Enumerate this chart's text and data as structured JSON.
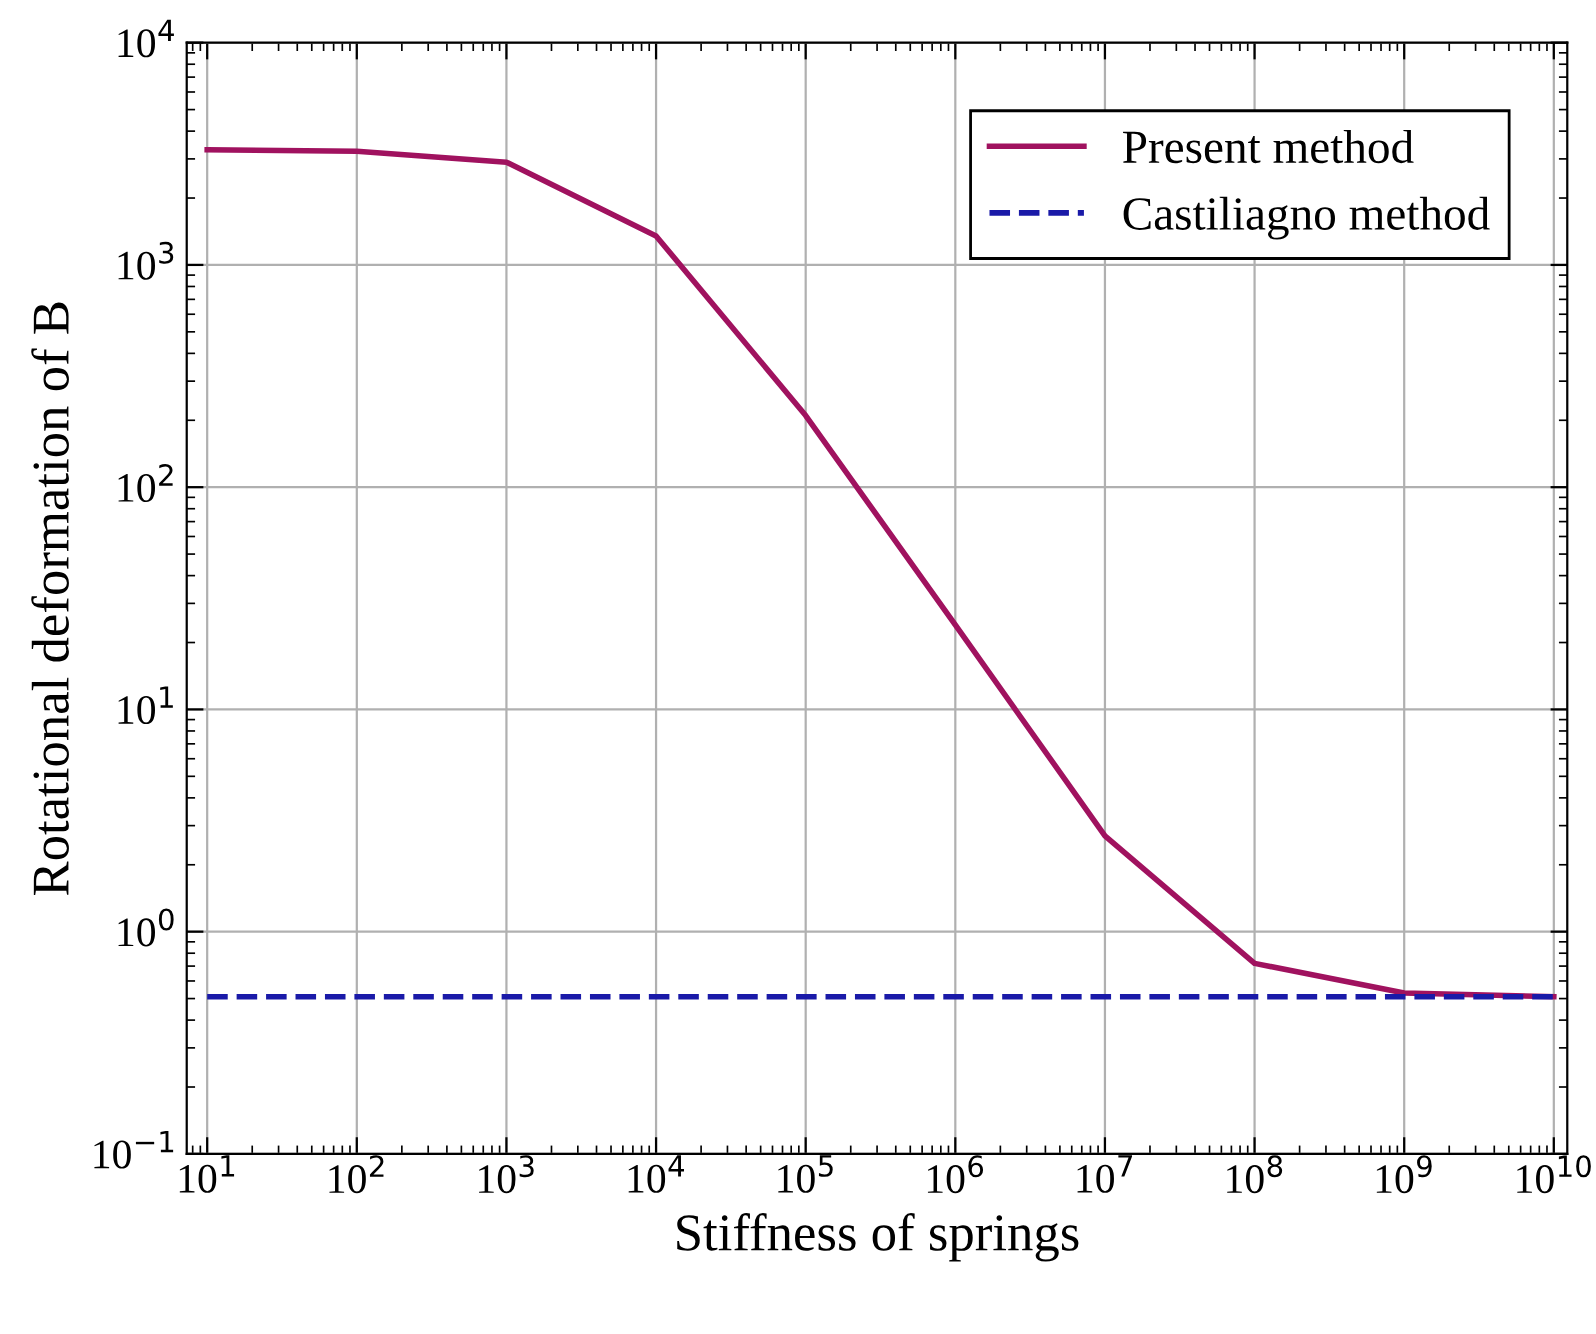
{
  "chart_data": {
    "type": "line",
    "xlabel": "Stiffness of springs",
    "ylabel": "Rotational deformation of B",
    "log": "xy",
    "grid": true,
    "legend": "top right",
    "xlim": [
      7.3,
      12300000000
    ],
    "ylim": [
      0.1,
      10000
    ],
    "xticks": [
      {
        "value": 10,
        "label": "10$^{1}$"
      },
      {
        "value": 100,
        "label": "10$^{2}$"
      },
      {
        "value": 1000,
        "label": "10$^{3}$"
      },
      {
        "value": 10000,
        "label": "10$^{4}$"
      },
      {
        "value": 100000,
        "label": "10$^{5}$"
      },
      {
        "value": 1000000,
        "label": "10$^{6}$"
      },
      {
        "value": 10000000,
        "label": "10$^{7}$"
      },
      {
        "value": 100000000,
        "label": "10$^{8}$"
      },
      {
        "value": 1000000000,
        "label": "10$^{9}$"
      },
      {
        "value": 10000000000,
        "label": "10$^{10}$"
      }
    ],
    "yticks": [
      {
        "value": 0.1,
        "label": "10$^{−1}$"
      },
      {
        "value": 1,
        "label": "10$^{0}$"
      },
      {
        "value": 10,
        "label": "10$^{1}$"
      },
      {
        "value": 100,
        "label": "10$^{2}$"
      },
      {
        "value": 1000,
        "label": "10$^{3}$"
      },
      {
        "value": 10000,
        "label": "10$^{4}$"
      }
    ],
    "x": [
      10,
      100,
      1000,
      10000,
      100000,
      1000000,
      10000000,
      100000000,
      1000000000,
      10000000000
    ],
    "series": [
      {
        "name": "Present method",
        "color": "#a0125f",
        "line_style": "solid",
        "values": [
          3300,
          3250,
          2900,
          1350,
          210,
          24,
          2.7,
          0.72,
          0.53,
          0.51
        ]
      },
      {
        "name": "Castiliagno method",
        "color": "#1a1aa8",
        "line_style": "dashed",
        "values": [
          0.51,
          0.51,
          0.51,
          0.51,
          0.51,
          0.51,
          0.51,
          0.51,
          0.51,
          0.51
        ]
      }
    ]
  }
}
